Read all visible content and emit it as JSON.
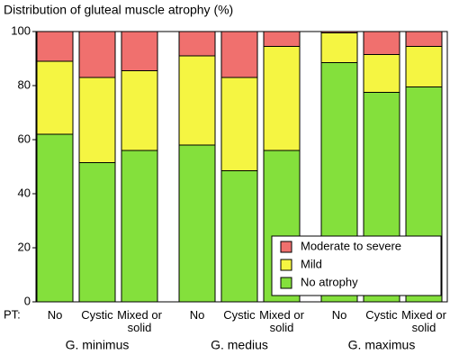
{
  "chart_data": {
    "type": "bar",
    "stacked": true,
    "title": "Distribution of gluteal muscle atrophy (%)",
    "axis_prefix": "PT:",
    "groups": [
      "G. minimus",
      "G. medius",
      "G. maximus"
    ],
    "categories": [
      "No",
      "Cystic",
      "Mixed or solid",
      "No",
      "Cystic",
      "Mixed or solid",
      "No",
      "Cystic",
      "Mixed or solid"
    ],
    "series": [
      {
        "name": "No atrophy",
        "color": "#84e03c",
        "values": [
          62,
          51.5,
          56,
          58,
          48.5,
          56,
          88.5,
          77.5,
          79.5
        ]
      },
      {
        "name": "Mild",
        "color": "#f5f542",
        "values": [
          27,
          31.5,
          29.5,
          33,
          34.5,
          38.5,
          11,
          14,
          15
        ]
      },
      {
        "name": "Moderate to severe",
        "color": "#f0706e",
        "values": [
          11,
          17,
          14.5,
          9,
          17,
          5.5,
          0.5,
          8.5,
          5.5
        ]
      }
    ],
    "ylim": [
      0,
      100
    ],
    "yticks": [
      0,
      20,
      40,
      60,
      80,
      100
    ],
    "grid": false,
    "legend": "lower right"
  }
}
